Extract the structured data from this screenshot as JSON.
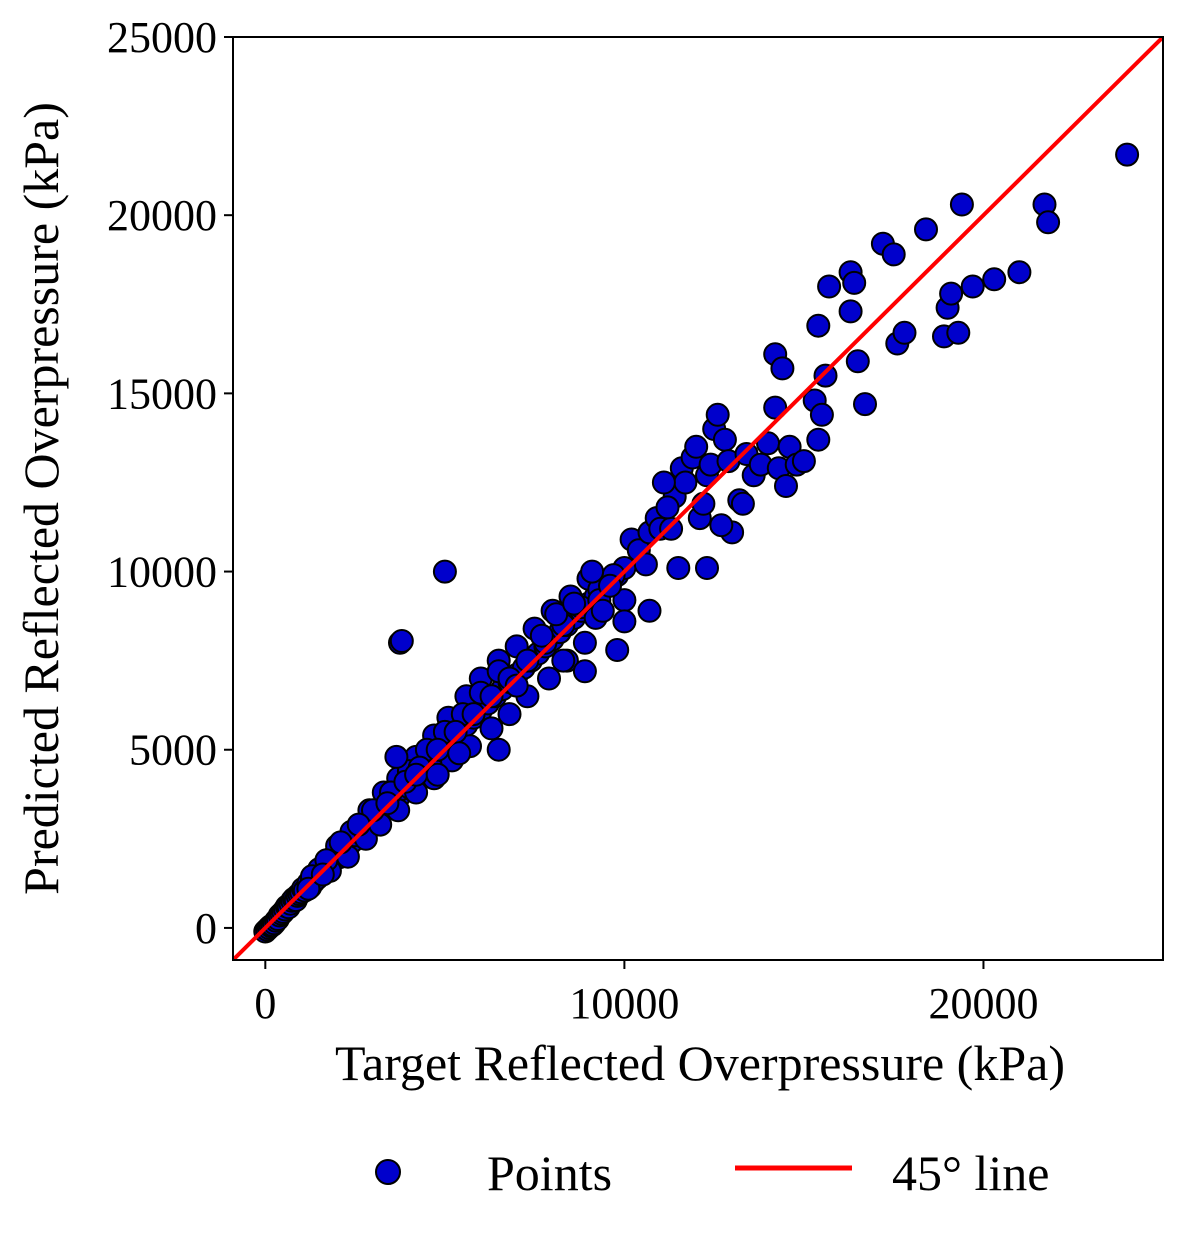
{
  "chart_data": {
    "type": "scatter",
    "title": "",
    "xlabel": "Target Reflected Overpressure (kPa)",
    "ylabel": "Predicted Reflected Overpressure (kPa)",
    "xlim": [
      -900,
      25000
    ],
    "ylim": [
      -900,
      25000
    ],
    "x_ticks": [
      0,
      10000,
      20000
    ],
    "x_tick_labels": [
      "0",
      "10000",
      "20000"
    ],
    "y_ticks": [
      0,
      5000,
      10000,
      15000,
      20000,
      25000
    ],
    "y_tick_labels": [
      "0",
      "5000",
      "10000",
      "15000",
      "20000",
      "25000"
    ],
    "grid": false,
    "legend_position": "bottom, outside",
    "legend": [
      {
        "label": "Points",
        "type": "marker",
        "color": "#0000cc"
      },
      {
        "label": "45° line",
        "type": "line",
        "color": "#ff0000"
      }
    ],
    "colors": {
      "points": "#0000cc",
      "point_edge": "#000000",
      "line": "#ff0000"
    },
    "reference_line": {
      "name": "45° line",
      "slope": 1,
      "intercept": 0
    },
    "series": [
      {
        "name": "Points",
        "points": [
          [
            0,
            -100
          ],
          [
            50,
            -50
          ],
          [
            100,
            0
          ],
          [
            150,
            50
          ],
          [
            200,
            80
          ],
          [
            250,
            130
          ],
          [
            300,
            200
          ],
          [
            350,
            250
          ],
          [
            400,
            350
          ],
          [
            450,
            400
          ],
          [
            500,
            450
          ],
          [
            550,
            520
          ],
          [
            600,
            600
          ],
          [
            650,
            580
          ],
          [
            700,
            680
          ],
          [
            750,
            760
          ],
          [
            800,
            820
          ],
          [
            850,
            780
          ],
          [
            900,
            900
          ],
          [
            950,
            950
          ],
          [
            1000,
            1000
          ],
          [
            1050,
            1100
          ],
          [
            1100,
            1050
          ],
          [
            1200,
            1250
          ],
          [
            1250,
            1150
          ],
          [
            1300,
            1350
          ],
          [
            1350,
            1300
          ],
          [
            1400,
            1450
          ],
          [
            1450,
            1400
          ],
          [
            1500,
            1550
          ],
          [
            1550,
            1500
          ],
          [
            1600,
            1650
          ],
          [
            1650,
            1600
          ],
          [
            1700,
            1800
          ],
          [
            1750,
            1700
          ],
          [
            1800,
            1900
          ],
          [
            1850,
            1850
          ],
          [
            1900,
            2000
          ],
          [
            1950,
            1950
          ],
          [
            2000,
            2100
          ],
          [
            2050,
            1980
          ],
          [
            2100,
            2200
          ],
          [
            2150,
            2050
          ],
          [
            2200,
            2300
          ],
          [
            2250,
            2250
          ],
          [
            2300,
            2400
          ],
          [
            2350,
            2350
          ],
          [
            2400,
            2500
          ],
          [
            2450,
            2450
          ],
          [
            2500,
            2600
          ],
          [
            2600,
            2700
          ],
          [
            2700,
            2800
          ],
          [
            2800,
            2750
          ],
          [
            2900,
            3000
          ],
          [
            3000,
            3100
          ],
          [
            3100,
            3050
          ],
          [
            3200,
            3300
          ],
          [
            3300,
            3400
          ],
          [
            3400,
            3350
          ],
          [
            3500,
            3600
          ],
          [
            3600,
            3700
          ],
          [
            3700,
            3650
          ],
          [
            3800,
            3900
          ],
          [
            3900,
            4000
          ],
          [
            4000,
            3950
          ],
          [
            4100,
            4200
          ],
          [
            4200,
            4300
          ],
          [
            4300,
            4250
          ],
          [
            4400,
            4500
          ],
          [
            4500,
            4600
          ],
          [
            4600,
            4700
          ],
          [
            4700,
            4650
          ],
          [
            4800,
            4900
          ],
          [
            4900,
            5000
          ],
          [
            5000,
            4950
          ],
          [
            5200,
            5300
          ],
          [
            5400,
            5500
          ],
          [
            5600,
            5700
          ],
          [
            5800,
            5900
          ],
          [
            6000,
            6100
          ],
          [
            6200,
            6300
          ],
          [
            6400,
            6500
          ],
          [
            6600,
            6700
          ],
          [
            6800,
            6900
          ],
          [
            7000,
            7100
          ],
          [
            7200,
            7300
          ],
          [
            7400,
            7500
          ],
          [
            7600,
            7700
          ],
          [
            7800,
            7900
          ],
          [
            8000,
            8100
          ],
          [
            8200,
            8300
          ],
          [
            8400,
            8500
          ],
          [
            8600,
            8700
          ],
          [
            8800,
            8900
          ],
          [
            9000,
            9100
          ],
          [
            9200,
            9300
          ],
          [
            9400,
            9500
          ],
          [
            9600,
            9700
          ],
          [
            9800,
            9900
          ],
          [
            10000,
            10100
          ],
          [
            1500,
            1650
          ],
          [
            2000,
            2300
          ],
          [
            2400,
            2700
          ],
          [
            2900,
            3300
          ],
          [
            3300,
            3800
          ],
          [
            3700,
            4200
          ],
          [
            4200,
            4800
          ],
          [
            4700,
            5400
          ],
          [
            5100,
            5900
          ],
          [
            5600,
            6500
          ],
          [
            6000,
            7000
          ],
          [
            6500,
            7500
          ],
          [
            7000,
            7900
          ],
          [
            7500,
            8400
          ],
          [
            8000,
            8900
          ],
          [
            8500,
            9300
          ],
          [
            9000,
            9800
          ],
          [
            1800,
            1600
          ],
          [
            2300,
            2000
          ],
          [
            2800,
            2500
          ],
          [
            3200,
            2900
          ],
          [
            3700,
            3300
          ],
          [
            4200,
            3800
          ],
          [
            4700,
            4200
          ],
          [
            5200,
            4700
          ],
          [
            5700,
            5100
          ],
          [
            6300,
            5600
          ],
          [
            6800,
            6000
          ],
          [
            7300,
            6500
          ],
          [
            7900,
            7000
          ],
          [
            8400,
            7500
          ],
          [
            8900,
            8000
          ],
          [
            3000,
            3300
          ],
          [
            3500,
            3800
          ],
          [
            4000,
            4400
          ],
          [
            4500,
            5000
          ],
          [
            5000,
            5500
          ],
          [
            5500,
            6000
          ],
          [
            6000,
            6600
          ],
          [
            6500,
            7200
          ],
          [
            1300,
            1450
          ],
          [
            1700,
            1900
          ],
          [
            2100,
            2400
          ],
          [
            2600,
            2900
          ],
          [
            3400,
            3500
          ],
          [
            3900,
            4100
          ],
          [
            4300,
            4500
          ],
          [
            4800,
            5000
          ],
          [
            5300,
            5500
          ],
          [
            5800,
            6000
          ],
          [
            6300,
            6500
          ],
          [
            6800,
            7000
          ],
          [
            7300,
            7500
          ],
          [
            7800,
            8000
          ],
          [
            8300,
            8500
          ],
          [
            8800,
            9000
          ],
          [
            9300,
            9500
          ],
          [
            9700,
            9900
          ],
          [
            1200,
            1100
          ],
          [
            1600,
            1500
          ],
          [
            3750,
            8000
          ],
          [
            3800,
            8050
          ],
          [
            5000,
            10000
          ],
          [
            3650,
            4800
          ],
          [
            4200,
            4300
          ],
          [
            4800,
            4300
          ],
          [
            5400,
            4900
          ],
          [
            6500,
            5000
          ],
          [
            7000,
            6800
          ],
          [
            8900,
            7200
          ],
          [
            9200,
            8700
          ],
          [
            9800,
            7800
          ],
          [
            8300,
            7500
          ],
          [
            7700,
            8200
          ],
          [
            8100,
            8800
          ],
          [
            8600,
            9100
          ],
          [
            9100,
            10000
          ],
          [
            9300,
            9200
          ],
          [
            10000,
            9200
          ],
          [
            10200,
            10900
          ],
          [
            10400,
            10600
          ],
          [
            10700,
            11100
          ],
          [
            10900,
            11500
          ],
          [
            11000,
            11200
          ],
          [
            11300,
            11200
          ],
          [
            11400,
            12100
          ],
          [
            11600,
            12900
          ],
          [
            11700,
            12500
          ],
          [
            11900,
            13200
          ],
          [
            12000,
            13500
          ],
          [
            12100,
            11500
          ],
          [
            12200,
            11900
          ],
          [
            12300,
            12700
          ],
          [
            12400,
            13000
          ],
          [
            12500,
            14000
          ],
          [
            12600,
            14400
          ],
          [
            12800,
            13700
          ],
          [
            12900,
            13100
          ],
          [
            13000,
            11100
          ],
          [
            13200,
            12000
          ],
          [
            13300,
            11900
          ],
          [
            13400,
            13300
          ],
          [
            13600,
            12700
          ],
          [
            13800,
            13000
          ],
          [
            14000,
            13600
          ],
          [
            14200,
            14600
          ],
          [
            14300,
            12900
          ],
          [
            14500,
            12400
          ],
          [
            14600,
            13500
          ],
          [
            14800,
            13000
          ],
          [
            15000,
            13100
          ],
          [
            15300,
            14800
          ],
          [
            15400,
            13700
          ],
          [
            15500,
            14400
          ],
          [
            15600,
            15500
          ],
          [
            15700,
            18000
          ],
          [
            16300,
            18400
          ],
          [
            16400,
            18100
          ],
          [
            16500,
            15900
          ],
          [
            16700,
            14700
          ],
          [
            14200,
            16100
          ],
          [
            14400,
            15700
          ],
          [
            15400,
            16900
          ],
          [
            16300,
            17300
          ],
          [
            17200,
            19200
          ],
          [
            17500,
            18900
          ],
          [
            17600,
            16400
          ],
          [
            17800,
            16700
          ],
          [
            18400,
            19600
          ],
          [
            18900,
            16600
          ],
          [
            19000,
            17400
          ],
          [
            19100,
            17800
          ],
          [
            19300,
            16700
          ],
          [
            19400,
            20300
          ],
          [
            19700,
            18000
          ],
          [
            20300,
            18200
          ],
          [
            21000,
            18400
          ],
          [
            21700,
            20300
          ],
          [
            21800,
            19800
          ],
          [
            24000,
            21700
          ],
          [
            11500,
            10100
          ],
          [
            12300,
            10100
          ],
          [
            10600,
            10200
          ],
          [
            10000,
            8600
          ],
          [
            10700,
            8900
          ],
          [
            11200,
            11800
          ],
          [
            12700,
            11300
          ],
          [
            11100,
            12500
          ],
          [
            9600,
            9600
          ],
          [
            9400,
            8900
          ]
        ]
      }
    ]
  }
}
